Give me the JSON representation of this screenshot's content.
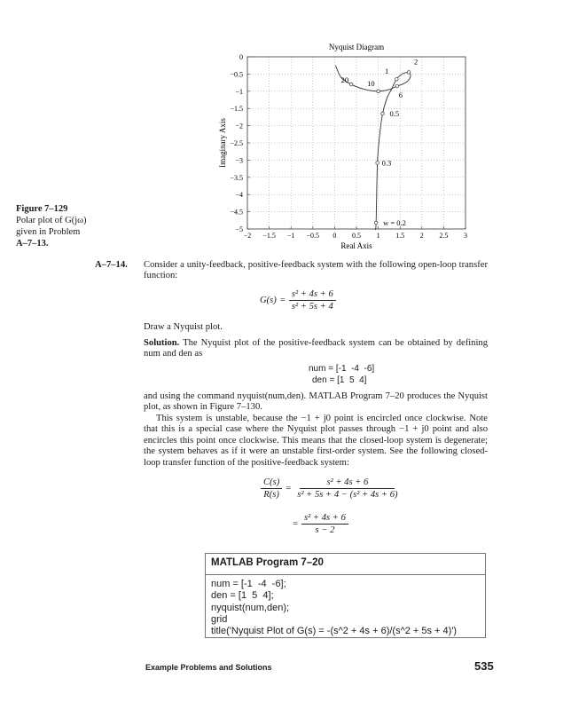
{
  "figure_caption": {
    "number": "Figure 7–129",
    "line1": "Polar plot of G(jω)",
    "line2": "given in Problem",
    "ref": "A–7–13."
  },
  "chart_data": {
    "type": "line",
    "title": "Nyquist Diagram",
    "xlabel": "Real Axis",
    "ylabel": "Imaginary Axis",
    "xlim": [
      -2,
      3
    ],
    "ylim": [
      -5,
      0
    ],
    "xticks": [
      "−2",
      "−1.5",
      "−1",
      "−0.5",
      "0",
      "0.5",
      "1",
      "1.5",
      "2",
      "2.5",
      "3"
    ],
    "yticks": [
      "0",
      "−0.5",
      "−1",
      "−1.5",
      "−2",
      "−2.5",
      "−3",
      "−3.5",
      "−4",
      "−4.5",
      "−5"
    ],
    "grid": true,
    "curve": {
      "x": [
        0.93,
        0.95,
        0.98,
        1.03,
        1.1,
        1.2,
        1.3,
        1.42,
        1.55,
        1.7,
        1.74,
        1.68,
        1.55,
        1.43,
        1.25,
        1.0,
        0.7,
        0.38,
        0.15,
        0.02
      ],
      "y": [
        -5.0,
        -4.82,
        -3.08,
        -2.3,
        -1.65,
        -1.2,
        -0.95,
        -0.65,
        -0.5,
        -0.45,
        -0.55,
        -0.7,
        -0.8,
        -0.85,
        -0.95,
        -1.0,
        -0.95,
        -0.8,
        -0.6,
        -0.25
      ]
    },
    "marked_points": [
      {
        "label": "w = 0.2",
        "x": 0.95,
        "y": -4.82
      },
      {
        "label": "0.3",
        "x": 0.98,
        "y": -3.08
      },
      {
        "label": "0.5",
        "x": 1.1,
        "y": -1.65
      },
      {
        "label": "1",
        "x": 1.42,
        "y": -0.65
      },
      {
        "label": "2",
        "x": 1.7,
        "y": -0.45
      },
      {
        "label": "6",
        "x": 1.43,
        "y": -0.85
      },
      {
        "label": "10",
        "x": 1.0,
        "y": -1.0
      },
      {
        "label": "20",
        "x": 0.38,
        "y": -0.8
      }
    ]
  },
  "problem": {
    "id": "A–7–14.",
    "intro": "Consider a unity-feedback, positive-feedback system with the following open-loop transfer function:",
    "eq1": {
      "lhs": "G(s)",
      "eq": "=",
      "num": "s² + 4s + 6",
      "den": "s² + 5s + 4"
    },
    "task": "Draw a Nyquist plot.",
    "solution_label": "Solution.",
    "solution_text": "The Nyquist plot of the positive-feedback system can be obtained by defining num and den as",
    "num_line": "num = [-1  -4  -6]",
    "den_line": "den = [1  5  4]",
    "para2": "and using the command nyquist(num,den). MATLAB Program 7–20 produces the Nyquist plot, as shown in Figure 7–130.",
    "para3": "This system is unstable, because the −1 + j0 point is encircled once clockwise. Note that this is a special case where the Nyquist plot passes through −1 + j0 point and also encircles this point once clockwise. This means that the closed-loop system is degenerate; the system behaves as if it were an unstable first-order system. See the following closed-loop transfer function of the positive-feedback system:",
    "eq2": {
      "lhs_num": "C(s)",
      "lhs_den": "R(s)",
      "eq": "=",
      "num": "s² + 4s + 6",
      "den": "s² + 5s + 4 − (s² + 4s + 6)"
    },
    "eq3": {
      "eq": "=",
      "num": "s² + 4s + 6",
      "den": "s − 2"
    }
  },
  "program": {
    "title": "MATLAB Program 7–20",
    "lines": [
      "num = [-1  -4  -6];",
      "den = [1  5  4];",
      "nyquist(num,den);",
      "grid",
      "title('Nyquist Plot of G(s) = -(s^2 + 4s + 6)/(s^2 + 5s + 4)')"
    ]
  },
  "footer": {
    "section": "Example Problems and Solutions",
    "page": "535"
  }
}
